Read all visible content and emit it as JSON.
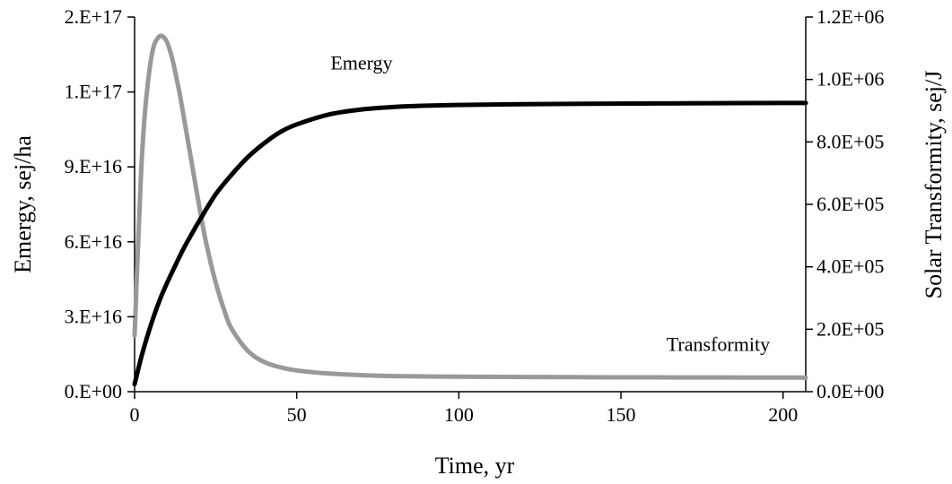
{
  "chart_data": {
    "type": "line",
    "title": "",
    "xlabel": "Time, yr",
    "ylabel": "Emergy, sej/ha",
    "y2label": "Solar Transformity, sej/J",
    "xlim": [
      0,
      207
    ],
    "ylim": [
      0,
      1.5e+17
    ],
    "y2lim": [
      0,
      1200000.0
    ],
    "x_ticks": [
      0,
      50,
      100,
      150,
      200
    ],
    "x_tick_labels": [
      "0",
      "50",
      "100",
      "150",
      "200"
    ],
    "y_ticks": [
      0,
      3e+16,
      6e+16,
      9e+16,
      1.2e+17,
      1.5e+17
    ],
    "y_tick_labels": [
      "0.E+00",
      "3.E+16",
      "6.E+16",
      "9.E+16",
      "1.E+17",
      "2.E+17"
    ],
    "y2_ticks": [
      0,
      200000,
      400000,
      600000,
      800000,
      1000000,
      1200000
    ],
    "y2_tick_labels": [
      "0.0E+00",
      "2.0E+05",
      "4.0E+05",
      "6.0E+05",
      "8.0E+05",
      "1.0E+06",
      "1.2E+06"
    ],
    "grid": false,
    "legend": "none",
    "series": [
      {
        "name": "Emergy",
        "axis": "left",
        "color": "#000000",
        "x": [
          0,
          2,
          4,
          6,
          8,
          10,
          12,
          15,
          18,
          20,
          25,
          30,
          35,
          40,
          45,
          50,
          60,
          70,
          80,
          90,
          100,
          120,
          140,
          160,
          180,
          200,
          207
        ],
        "values": [
          3000000000000000.0,
          1.35e+16,
          2.25e+16,
          3.05e+16,
          3.75e+16,
          4.35e+16,
          4.9e+16,
          5.7e+16,
          6.4e+16,
          6.85e+16,
          7.9e+16,
          8.7e+16,
          9.4e+16,
          9.95e+16,
          1.04e+17,
          1.07e+17,
          1.11e+17,
          1.13e+17,
          1.14e+17,
          1.145e+17,
          1.148e+17,
          1.151e+17,
          1.153e+17,
          1.154e+17,
          1.155e+17,
          1.156e+17,
          1.156e+17
        ]
      },
      {
        "name": "Transformity",
        "axis": "right",
        "color": "#999999",
        "x": [
          0,
          1,
          2,
          3,
          4,
          5,
          6,
          7,
          8,
          9,
          10,
          11,
          12,
          13,
          14,
          16,
          18,
          20,
          22,
          25,
          28,
          30,
          35,
          40,
          45,
          50,
          60,
          70,
          80,
          100,
          120,
          150,
          180,
          207
        ],
        "values": [
          180000,
          450000,
          700000,
          870000,
          980000,
          1060000,
          1110000,
          1130000,
          1140000,
          1135000,
          1120000,
          1090000,
          1050000,
          1000000,
          950000,
          830000,
          710000,
          590000,
          480000,
          350000,
          250000,
          200000,
          130000,
          95000,
          78000,
          68000,
          58000,
          53000,
          50000,
          48000,
          47000,
          46000,
          45500,
          45000
        ]
      }
    ],
    "annotations": [
      {
        "text": "Emergy",
        "x": 70,
        "y": 1.29e+17,
        "axis": "left"
      },
      {
        "text": "Transformity",
        "x": 180,
        "y": 130000,
        "axis": "right"
      }
    ]
  }
}
